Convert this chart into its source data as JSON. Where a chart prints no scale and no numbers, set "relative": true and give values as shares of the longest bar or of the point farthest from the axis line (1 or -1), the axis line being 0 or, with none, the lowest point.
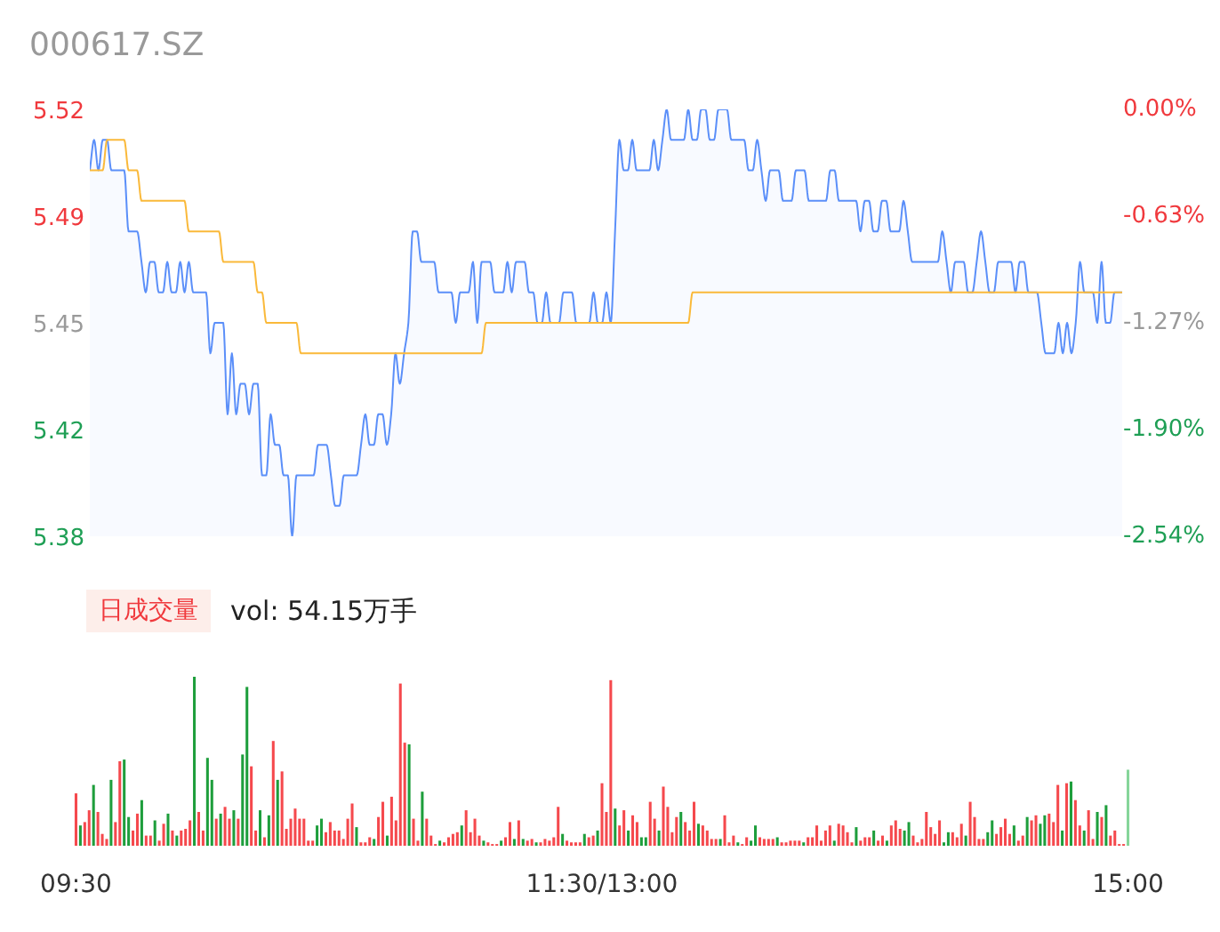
{
  "chart_data": [
    {
      "type": "area",
      "title": "000617.SZ",
      "categories": [
        null,
        null,
        null,
        null,
        null,
        null,
        null,
        null,
        null,
        null,
        null,
        null,
        null,
        null,
        null,
        null,
        null,
        null,
        null,
        null,
        null,
        null,
        null,
        null,
        null,
        null,
        null,
        null,
        null,
        null,
        null,
        null,
        null,
        null,
        null,
        null,
        null,
        null,
        null,
        null,
        null,
        null,
        null,
        null,
        null,
        null,
        null,
        null,
        null,
        null,
        null,
        null,
        null,
        null,
        null,
        null,
        null,
        null,
        null,
        null,
        null,
        null,
        null,
        null,
        null,
        null,
        null,
        null,
        null,
        null,
        null,
        null,
        null,
        null,
        null,
        null,
        null,
        null,
        null,
        null,
        null,
        null,
        null,
        null,
        null,
        null,
        null,
        null,
        null,
        null,
        null,
        null,
        null,
        null,
        null,
        null,
        null,
        null,
        null,
        null,
        null,
        null,
        null,
        null,
        null,
        null,
        null,
        null,
        null,
        null,
        null,
        null,
        null,
        null,
        null,
        null,
        null,
        null,
        null,
        null,
        null,
        null,
        null,
        null,
        null,
        null,
        null,
        null,
        null,
        null,
        null,
        null,
        null,
        null,
        null,
        null,
        null,
        null,
        null,
        null,
        null,
        null,
        null,
        null,
        null,
        null,
        null,
        null,
        null,
        null,
        null,
        null,
        null,
        null,
        null,
        null,
        null,
        null,
        null,
        null,
        null,
        null,
        null,
        null,
        null,
        null,
        null,
        null,
        null,
        null,
        null,
        null,
        null,
        null,
        null,
        null,
        null,
        null,
        null,
        null,
        null,
        null,
        null,
        null,
        null,
        null,
        null,
        null,
        null,
        null,
        null,
        null,
        null,
        null,
        null,
        null,
        null,
        null,
        null,
        null,
        null,
        null,
        null,
        null,
        null,
        null,
        null,
        null,
        null,
        null,
        null,
        null,
        null,
        null,
        null,
        null,
        null,
        null,
        null,
        null,
        null,
        null,
        null,
        null,
        null,
        null,
        null,
        null,
        null,
        null,
        null,
        null,
        null,
        null,
        null,
        null,
        null,
        null,
        null,
        null,
        null
      ],
      "series": [
        {
          "color": "#5b8ff9",
          "values": [
            5.5,
            5.51,
            5.5,
            5.51,
            5.51,
            5.5,
            5.5,
            5.5,
            5.5,
            5.48,
            5.48,
            5.48,
            5.47,
            5.46,
            5.47,
            5.47,
            5.46,
            5.46,
            5.47,
            5.46,
            5.46,
            5.47,
            5.46,
            5.47,
            5.46,
            5.46,
            5.46,
            5.46,
            5.44,
            5.45,
            5.45,
            5.45,
            5.42,
            5.44,
            5.42,
            5.43,
            5.43,
            5.42,
            5.43,
            5.43,
            5.4,
            5.4,
            5.42,
            5.41,
            5.41,
            5.4,
            5.4,
            5.38,
            5.4,
            5.4,
            5.4,
            5.4,
            5.4,
            5.41,
            5.41,
            5.41,
            5.4,
            5.39,
            5.39,
            5.4,
            5.4,
            5.4,
            5.4,
            5.41,
            5.42,
            5.41,
            5.41,
            5.42,
            5.42,
            5.41,
            5.42,
            5.44,
            5.43,
            5.44,
            5.45,
            5.48,
            5.48,
            5.47,
            5.47,
            5.47,
            5.47,
            5.46,
            5.46,
            5.46,
            5.46,
            5.45,
            5.46,
            5.46,
            5.46,
            5.47,
            5.45,
            5.47,
            5.47,
            5.47,
            5.46,
            5.46,
            5.46,
            5.47,
            5.46,
            5.47,
            5.47,
            5.47,
            5.46,
            5.46,
            5.45,
            5.45,
            5.46,
            5.45,
            5.45,
            5.45,
            5.46,
            5.46,
            5.46,
            5.45,
            5.45,
            5.45,
            5.45,
            5.46,
            5.45,
            5.45,
            5.46,
            5.45,
            5.48,
            5.51,
            5.5,
            5.5,
            5.51,
            5.5,
            5.5,
            5.5,
            5.5,
            5.51,
            5.5,
            5.51,
            5.52,
            5.51,
            5.51,
            5.51,
            5.51,
            5.52,
            5.51,
            5.51,
            5.52,
            5.52,
            5.51,
            5.51,
            5.52,
            5.52,
            5.52,
            5.51,
            5.51,
            5.51,
            5.51,
            5.5,
            5.5,
            5.51,
            5.5,
            5.49,
            5.5,
            5.5,
            5.5,
            5.49,
            5.49,
            5.49,
            5.5,
            5.5,
            5.5,
            5.49,
            5.49,
            5.49,
            5.49,
            5.49,
            5.5,
            5.5,
            5.49,
            5.49,
            5.49,
            5.49,
            5.49,
            5.48,
            5.49,
            5.49,
            5.48,
            5.48,
            5.49,
            5.49,
            5.48,
            5.48,
            5.48,
            5.49,
            5.48,
            5.47,
            5.47,
            5.47,
            5.47,
            5.47,
            5.47,
            5.47,
            5.48,
            5.47,
            5.46,
            5.47,
            5.47,
            5.47,
            5.46,
            5.46,
            5.47,
            5.48,
            5.47,
            5.46,
            5.46,
            5.47,
            5.47,
            5.47,
            5.47,
            5.46,
            5.47,
            5.47,
            5.46,
            5.46,
            5.46,
            5.45,
            5.44,
            5.44,
            5.44,
            5.45,
            5.44,
            5.45,
            5.44,
            5.45,
            5.47,
            5.46,
            5.46,
            5.46,
            5.45,
            5.47,
            5.45,
            5.45,
            5.46,
            5.46,
            5.46
          ]
        },
        {
          "type": "line",
          "color": "#fab93a",
          "values": [
            5.5,
            5.5,
            5.5,
            5.5,
            5.51,
            5.51,
            5.51,
            5.51,
            5.51,
            5.5,
            5.5,
            5.5,
            5.49,
            5.49,
            5.49,
            5.49,
            5.49,
            5.49,
            5.49,
            5.49,
            5.49,
            5.49,
            5.49,
            5.48,
            5.48,
            5.48,
            5.48,
            5.48,
            5.48,
            5.48,
            5.48,
            5.47,
            5.47,
            5.47,
            5.47,
            5.47,
            5.47,
            5.47,
            5.47,
            5.46,
            5.46,
            5.45,
            5.45,
            5.45,
            5.45,
            5.45,
            5.45,
            5.45,
            5.45,
            5.44,
            5.44,
            5.44,
            5.44,
            5.44,
            5.44,
            5.44,
            5.44,
            5.44,
            5.44,
            5.44,
            5.44,
            5.44,
            5.44,
            5.44,
            5.44,
            5.44,
            5.44,
            5.44,
            5.44,
            5.44,
            5.44,
            5.44,
            5.44,
            5.44,
            5.44,
            5.44,
            5.44,
            5.44,
            5.44,
            5.44,
            5.44,
            5.44,
            5.44,
            5.44,
            5.44,
            5.44,
            5.44,
            5.44,
            5.44,
            5.44,
            5.44,
            5.44,
            5.45,
            5.45,
            5.45,
            5.45,
            5.45,
            5.45,
            5.45,
            5.45,
            5.45,
            5.45,
            5.45,
            5.45,
            5.45,
            5.45,
            5.45,
            5.45,
            5.45,
            5.45,
            5.45,
            5.45,
            5.45,
            5.45,
            5.45,
            5.45,
            5.45,
            5.45,
            5.45,
            5.45,
            5.45,
            5.45,
            5.45,
            5.45,
            5.45,
            5.45,
            5.45,
            5.45,
            5.45,
            5.45,
            5.45,
            5.45,
            5.45,
            5.45,
            5.45,
            5.45,
            5.45,
            5.45,
            5.45,
            5.45,
            5.46,
            5.46,
            5.46,
            5.46,
            5.46,
            5.46,
            5.46,
            5.46,
            5.46,
            5.46,
            5.46,
            5.46,
            5.46,
            5.46,
            5.46,
            5.46,
            5.46,
            5.46,
            5.46,
            5.46,
            5.46,
            5.46,
            5.46,
            5.46,
            5.46,
            5.46,
            5.46,
            5.46,
            5.46,
            5.46,
            5.46,
            5.46,
            5.46,
            5.46,
            5.46,
            5.46,
            5.46,
            5.46,
            5.46,
            5.46,
            5.46,
            5.46,
            5.46,
            5.46,
            5.46,
            5.46,
            5.46,
            5.46,
            5.46,
            5.46,
            5.46,
            5.46,
            5.46,
            5.46,
            5.46,
            5.46,
            5.46,
            5.46,
            5.46,
            5.46,
            5.46,
            5.46,
            5.46,
            5.46,
            5.46,
            5.46,
            5.46,
            5.46,
            5.46,
            5.46,
            5.46,
            5.46,
            5.46,
            5.46,
            5.46,
            5.46,
            5.46,
            5.46,
            5.46,
            5.46,
            5.46,
            5.46,
            5.46,
            5.46,
            5.46,
            5.46,
            5.46,
            5.46,
            5.46,
            5.46,
            5.46,
            5.46,
            5.46,
            5.46,
            5.46,
            5.46,
            5.46,
            5.46,
            5.46,
            5.46,
            5.46
          ]
        }
      ],
      "ylim": [
        5.38,
        5.52
      ],
      "yticks": [
        5.52,
        {
          "value": 5.485,
          "label": "5.49"
        },
        5.45,
        {
          "value": 5.415,
          "label": "5.42"
        },
        5.38
      ],
      "y2lim": [
        -2.54,
        0
      ],
      "y2ticks": [
        {
          "value": 0,
          "label": "0.00%"
        },
        {
          "value": -0.635,
          "label": "-0.63%"
        },
        {
          "value": -1.27,
          "label": "-1.27%"
        },
        {
          "value": -1.905,
          "label": "-1.90%"
        },
        {
          "value": -2.54,
          "label": "-2.54%"
        }
      ],
      "tick_labels": "y"
    },
    {
      "type": "bar",
      "title": "日成交量",
      "subtitle": "vol: 54.15万手",
      "relative": true,
      "tick_labels": "x",
      "categories": [
        "09:30",
        null,
        null,
        null,
        null,
        null,
        null,
        null,
        null,
        null,
        null,
        null,
        null,
        null,
        null,
        null,
        null,
        null,
        null,
        null,
        null,
        null,
        null,
        null,
        null,
        null,
        null,
        null,
        null,
        null,
        null,
        null,
        null,
        null,
        null,
        null,
        null,
        null,
        null,
        null,
        null,
        null,
        null,
        null,
        null,
        null,
        null,
        null,
        null,
        null,
        null,
        null,
        null,
        null,
        null,
        null,
        null,
        null,
        null,
        null,
        null,
        null,
        null,
        null,
        null,
        null,
        null,
        null,
        null,
        null,
        null,
        null,
        null,
        null,
        null,
        null,
        null,
        null,
        null,
        null,
        null,
        null,
        null,
        null,
        null,
        null,
        null,
        null,
        null,
        null,
        null,
        null,
        null,
        null,
        null,
        null,
        null,
        null,
        null,
        null,
        null,
        null,
        null,
        null,
        null,
        null,
        null,
        null,
        null,
        null,
        null,
        null,
        null,
        null,
        null,
        null,
        null,
        null,
        null,
        null,
        "11:30/13:00",
        null,
        null,
        null,
        null,
        null,
        null,
        null,
        null,
        null,
        null,
        null,
        null,
        null,
        null,
        null,
        null,
        null,
        null,
        null,
        null,
        null,
        null,
        null,
        null,
        null,
        null,
        null,
        null,
        null,
        null,
        null,
        null,
        null,
        null,
        null,
        null,
        null,
        null,
        null,
        null,
        null,
        null,
        null,
        null,
        null,
        null,
        null,
        null,
        null,
        null,
        null,
        null,
        null,
        null,
        null,
        null,
        null,
        null,
        null,
        null,
        null,
        null,
        null,
        null,
        null,
        null,
        null,
        null,
        null,
        null,
        null,
        null,
        null,
        null,
        null,
        null,
        null,
        null,
        null,
        null,
        null,
        null,
        null,
        null,
        null,
        null,
        null,
        null,
        null,
        null,
        null,
        null,
        null,
        null,
        null,
        null,
        null,
        null,
        null,
        null,
        null,
        null,
        null,
        null,
        null,
        null,
        null,
        null,
        null,
        null,
        null,
        null,
        null,
        null,
        null,
        null,
        null,
        null,
        null,
        "15:00"
      ],
      "values": [
        0.31,
        0.12,
        0.14,
        0.21,
        0.36,
        0.2,
        0.07,
        0.04,
        0.39,
        0.14,
        0.5,
        0.51,
        0.17,
        0.09,
        0.19,
        0.27,
        0.06,
        0.06,
        0.15,
        0.03,
        0.13,
        0.19,
        0.09,
        0.06,
        0.09,
        0.1,
        0.15,
        1,
        0.2,
        0.09,
        0.52,
        0.39,
        0.16,
        0.19,
        0.23,
        0.16,
        0.21,
        0.16,
        0.54,
        0.94,
        0.47,
        0.09,
        0.21,
        0.05,
        0.18,
        0.62,
        0.39,
        0.44,
        0.1,
        0.16,
        0.22,
        0.16,
        0.16,
        0.03,
        0.03,
        0.12,
        0.16,
        0.08,
        0.14,
        0.09,
        0.09,
        0.04,
        0.16,
        0.25,
        0.11,
        0.02,
        0.02,
        0.05,
        0.04,
        0.17,
        0.26,
        0.06,
        0.29,
        0.15,
        0.96,
        0.61,
        0.6,
        0.16,
        0.03,
        0.32,
        0.16,
        0.06,
        0.01,
        0.03,
        0.02,
        0.05,
        0.07,
        0.08,
        0.12,
        0.21,
        0.08,
        0.16,
        0.06,
        0.03,
        0.02,
        0.01,
        0.01,
        0.03,
        0.05,
        0.14,
        0.04,
        0.15,
        0.04,
        0.03,
        0.04,
        0.02,
        0.02,
        0.04,
        0.03,
        0.05,
        0.23,
        0.07,
        0.03,
        0.02,
        0.02,
        0.02,
        0.07,
        0.05,
        0.06,
        0.09,
        0.37,
        0.2,
        0.98,
        0.22,
        0.12,
        0.21,
        0.09,
        0.18,
        0.14,
        0.05,
        0.05,
        0.26,
        0.16,
        0.09,
        0.35,
        0.23,
        0.08,
        0.17,
        0.2,
        0.14,
        0.09,
        0.26,
        0.13,
        0.12,
        0.09,
        0.04,
        0.04,
        0.04,
        0.18,
        0.02,
        0.06,
        0.02,
        0.01,
        0.05,
        0.03,
        0.12,
        0.05,
        0.04,
        0.04,
        0.04,
        0.05,
        0.02,
        0.02,
        0.03,
        0.03,
        0.03,
        0.02,
        0.05,
        0.05,
        0.12,
        0.03,
        0.09,
        0.12,
        0.03,
        0.13,
        0.12,
        0.08,
        0.02,
        0.11,
        0.03,
        0.05,
        0.05,
        0.09,
        0.03,
        0.06,
        0.03,
        0.12,
        0.15,
        0.1,
        0.09,
        0.14,
        0.06,
        0.02,
        0.04,
        0.2,
        0.11,
        0.07,
        0.15,
        0.02,
        0.08,
        0.08,
        0.05,
        0.13,
        0.06,
        0.26,
        0.17,
        0.04,
        0.04,
        0.08,
        0.15,
        0.07,
        0.11,
        0.16,
        0.07,
        0.12,
        0.03,
        0.06,
        0.17,
        0.15,
        0.18,
        0.13,
        0.18,
        0.19,
        0.14,
        0.36,
        0.09,
        0.37,
        0.38,
        0.27,
        0.12,
        0.09,
        0.21,
        0.04,
        0.2,
        0.17,
        0.24,
        0.06,
        0.09,
        0.01,
        0.01,
        0.45
      ],
      "colors": [
        "#f5494d",
        "#1e9e3c",
        "#f5494d",
        "#f5494d",
        "#1e9e3c",
        "#f5494d",
        "#f5494d",
        "#f5494d",
        "#1e9e3c",
        "#f5494d",
        "#f5494d",
        "#1e9e3c",
        "#1e9e3c",
        "#f5494d",
        "#f5494d",
        "#1e9e3c",
        "#f5494d",
        "#f5494d",
        "#1e9e3c",
        "#f5494d",
        "#f5494d",
        "#1e9e3c",
        "#f5494d",
        "#1e9e3c",
        "#f5494d",
        "#f5494d",
        "#f5494d",
        "#1e9e3c",
        "#f5494d",
        "#f5494d",
        "#1e9e3c",
        "#1e9e3c",
        "#f5494d",
        "#1e9e3c",
        "#f5494d",
        "#f5494d",
        "#1e9e3c",
        "#f5494d",
        "#1e9e3c",
        "#1e9e3c",
        "#f5494d",
        "#f5494d",
        "#1e9e3c",
        "#f5494d",
        "#1e9e3c",
        "#f5494d",
        "#1e9e3c",
        "#f5494d",
        "#f5494d",
        "#f5494d",
        "#f5494d",
        "#f5494d",
        "#f5494d",
        "#f5494d",
        "#f5494d",
        "#1e9e3c",
        "#1e9e3c",
        "#f5494d",
        "#f5494d",
        "#f5494d",
        "#f5494d",
        "#f5494d",
        "#f5494d",
        "#f5494d",
        "#1e9e3c",
        "#f5494d",
        "#f5494d",
        "#f5494d",
        "#1e9e3c",
        "#f5494d",
        "#f5494d",
        "#1e9e3c",
        "#f5494d",
        "#f5494d",
        "#f5494d",
        "#f5494d",
        "#1e9e3c",
        "#f5494d",
        "#f5494d",
        "#1e9e3c",
        "#f5494d",
        "#f5494d",
        "#f5494d",
        "#1e9e3c",
        "#f5494d",
        "#f5494d",
        "#f5494d",
        "#f5494d",
        "#1e9e3c",
        "#f5494d",
        "#f5494d",
        "#f5494d",
        "#f5494d",
        "#1e9e3c",
        "#f5494d",
        "#f5494d",
        "#f5494d",
        "#1e9e3c",
        "#f5494d",
        "#f5494d",
        "#1e9e3c",
        "#f5494d",
        "#1e9e3c",
        "#f5494d",
        "#f5494d",
        "#1e9e3c",
        "#f5494d",
        "#f5494d",
        "#f5494d",
        "#f5494d",
        "#f5494d",
        "#1e9e3c",
        "#f5494d",
        "#f5494d",
        "#f5494d",
        "#f5494d",
        "#1e9e3c",
        "#f5494d",
        "#f5494d",
        "#1e9e3c",
        "#f5494d",
        "#f5494d",
        "#f5494d",
        "#1e9e3c",
        "#f5494d",
        "#f5494d",
        "#1e9e3c",
        "#f5494d",
        "#f5494d",
        "#1e9e3c",
        "#1e9e3c",
        "#f5494d",
        "#f5494d",
        "#1e9e3c",
        "#f5494d",
        "#f5494d",
        "#f5494d",
        "#f5494d",
        "#1e9e3c",
        "#f5494d",
        "#f5494d",
        "#f5494d",
        "#1e9e3c",
        "#f5494d",
        "#f5494d",
        "#f5494d",
        "#f5494d",
        "#1e9e3c",
        "#f5494d",
        "#f5494d",
        "#f5494d",
        "#1e9e3c",
        "#f5494d",
        "#f5494d",
        "#1e9e3c",
        "#1e9e3c",
        "#f5494d",
        "#f5494d",
        "#f5494d",
        "#f5494d",
        "#1e9e3c",
        "#f5494d",
        "#f5494d",
        "#f5494d",
        "#f5494d",
        "#f5494d",
        "#1e9e3c",
        "#f5494d",
        "#f5494d",
        "#f5494d",
        "#f5494d",
        "#f5494d",
        "#f5494d",
        "#1e9e3c",
        "#f5494d",
        "#f5494d",
        "#f5494d",
        "#f5494d",
        "#1e9e3c",
        "#f5494d",
        "#f5494d",
        "#f5494d",
        "#1e9e3c",
        "#f5494d",
        "#f5494d",
        "#1e9e3c",
        "#f5494d",
        "#f5494d",
        "#f5494d",
        "#1e9e3c",
        "#1e9e3c",
        "#f5494d",
        "#f5494d",
        "#f5494d",
        "#f5494d",
        "#f5494d",
        "#f5494d",
        "#f5494d",
        "#1e9e3c",
        "#1e9e3c",
        "#f5494d",
        "#f5494d",
        "#f5494d",
        "#1e9e3c",
        "#f5494d",
        "#f5494d",
        "#f5494d",
        "#f5494d",
        "#1e9e3c",
        "#1e9e3c",
        "#f5494d",
        "#f5494d",
        "#f5494d",
        "#f5494d",
        "#1e9e3c",
        "#f5494d",
        "#f5494d",
        "#1e9e3c",
        "#f5494d",
        "#f5494d",
        "#1e9e3c",
        "#1e9e3c",
        "#f5494d",
        "#f5494d",
        "#f5494d",
        "#1e9e3c",
        "#f5494d",
        "#1e9e3c",
        "#f5494d",
        "#f5494d",
        "#1e9e3c",
        "#f5494d",
        "#f5494d",
        "#1e9e3c",
        "#f5494d",
        "#1e9e3c",
        "#f5494d",
        "#f5494d",
        "#f5494d",
        "#f5494d",
        "#86d59a"
      ]
    }
  ]
}
